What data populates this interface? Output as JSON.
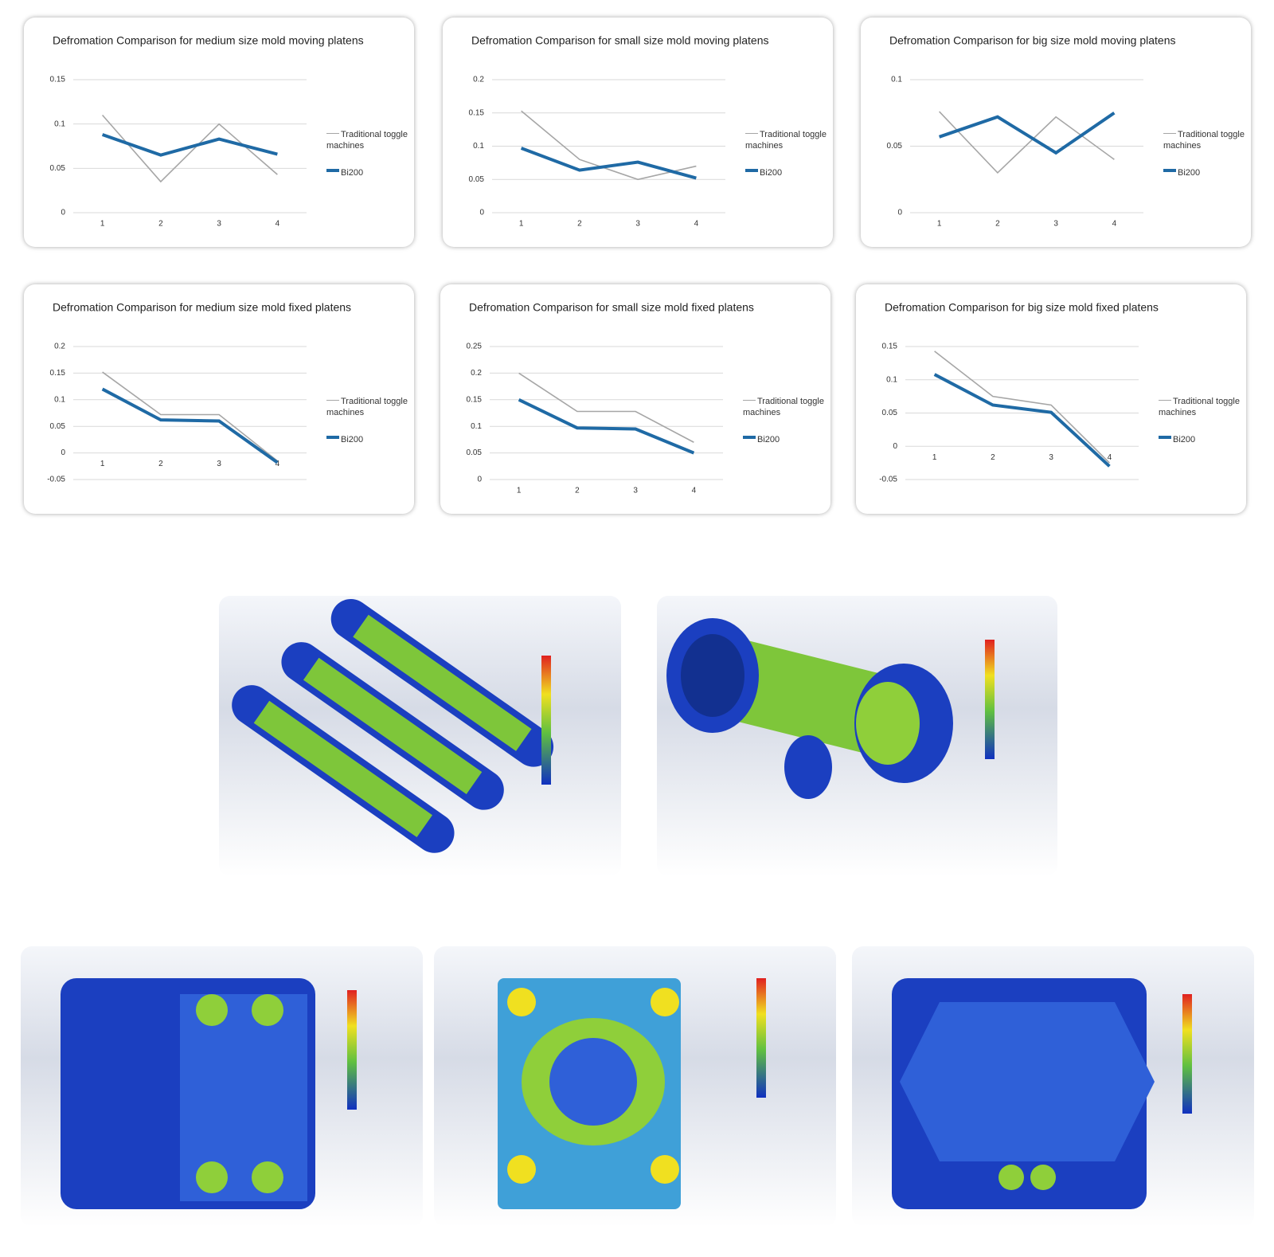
{
  "chart_data": [
    {
      "type": "line",
      "title": "Defromation Comparison for medium size mold moving platens",
      "categories": [
        "1",
        "2",
        "3",
        "4"
      ],
      "series": [
        {
          "name": "Traditional toggle machines",
          "color": "#a6a6a6",
          "values": [
            0.11,
            0.035,
            0.1,
            0.043
          ]
        },
        {
          "name": "Bi200",
          "color": "#1f6aa5",
          "values": [
            0.088,
            0.065,
            0.083,
            0.066
          ]
        }
      ],
      "ylim": [
        0,
        0.15
      ],
      "yticks": [
        0,
        0.05,
        0.1,
        0.15
      ],
      "grid": true
    },
    {
      "type": "line",
      "title": "Defromation Comparison for small size mold moving platens",
      "categories": [
        "1",
        "2",
        "3",
        "4"
      ],
      "series": [
        {
          "name": "Traditional toggle machines",
          "color": "#a6a6a6",
          "values": [
            0.153,
            0.08,
            0.05,
            0.07
          ]
        },
        {
          "name": "Bi200",
          "color": "#1f6aa5",
          "values": [
            0.097,
            0.064,
            0.076,
            0.052
          ]
        }
      ],
      "ylim": [
        0,
        0.2
      ],
      "yticks": [
        0,
        0.05,
        0.1,
        0.15,
        0.2
      ],
      "grid": true
    },
    {
      "type": "line",
      "title": "Defromation Comparison for big size mold moving platens",
      "categories": [
        "1",
        "2",
        "3",
        "4"
      ],
      "series": [
        {
          "name": "Traditional toggle machines",
          "color": "#a6a6a6",
          "values": [
            0.076,
            0.03,
            0.072,
            0.04
          ]
        },
        {
          "name": "Bi200",
          "color": "#1f6aa5",
          "values": [
            0.057,
            0.072,
            0.045,
            0.075
          ]
        }
      ],
      "ylim": [
        0,
        0.1
      ],
      "yticks": [
        0,
        0.05,
        0.1
      ],
      "grid": true
    },
    {
      "type": "line",
      "title": "Defromation Comparison for medium size mold fixed  platens",
      "categories": [
        "1",
        "2",
        "3",
        "4"
      ],
      "series": [
        {
          "name": "Traditional toggle machines",
          "color": "#a6a6a6",
          "values": [
            0.152,
            0.072,
            0.072,
            -0.015
          ]
        },
        {
          "name": "Bi200",
          "color": "#1f6aa5",
          "values": [
            0.12,
            0.062,
            0.06,
            -0.018
          ]
        }
      ],
      "ylim": [
        -0.05,
        0.2
      ],
      "yticks": [
        -0.05,
        0,
        0.05,
        0.1,
        0.15,
        0.2
      ],
      "grid": true
    },
    {
      "type": "line",
      "title": "Defromation Comparison for  small size mold fixed  platens",
      "categories": [
        "1",
        "2",
        "3",
        "4"
      ],
      "series": [
        {
          "name": "Traditional toggle machines",
          "color": "#a6a6a6",
          "values": [
            0.2,
            0.128,
            0.128,
            0.07
          ]
        },
        {
          "name": "Bi200",
          "color": "#1f6aa5",
          "values": [
            0.15,
            0.097,
            0.095,
            0.05
          ]
        }
      ],
      "ylim": [
        0,
        0.25
      ],
      "yticks": [
        0,
        0.05,
        0.1,
        0.15,
        0.2,
        0.25
      ],
      "grid": true
    },
    {
      "type": "line",
      "title": "Defromation Comparison for big size mold fixed  platens",
      "categories": [
        "1",
        "2",
        "3",
        "4"
      ],
      "series": [
        {
          "name": "Traditional toggle machines",
          "color": "#a6a6a6",
          "values": [
            0.143,
            0.075,
            0.062,
            -0.025
          ]
        },
        {
          "name": "Bi200",
          "color": "#1f6aa5",
          "values": [
            0.108,
            0.062,
            0.051,
            -0.03
          ]
        }
      ],
      "ylim": [
        -0.05,
        0.15
      ],
      "yticks": [
        -0.05,
        0,
        0.05,
        0.1,
        0.15
      ],
      "grid": true
    }
  ]
}
